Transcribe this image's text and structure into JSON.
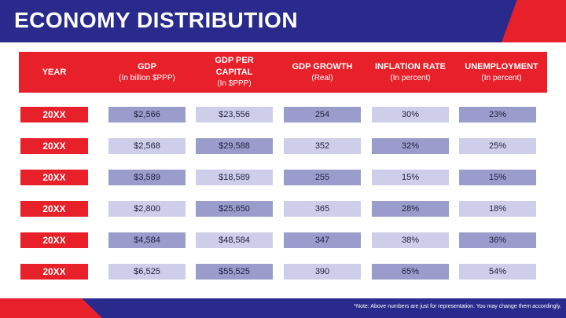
{
  "title": "ECONOMY DISTRIBUTION",
  "columns": [
    {
      "label": "YEAR",
      "sub": ""
    },
    {
      "label": "GDP",
      "sub": "(In billion $PPP)"
    },
    {
      "label": "GDP PER CAPITAL",
      "sub": "(In $PPP)"
    },
    {
      "label": "GDP GROWTH",
      "sub": "(Real)"
    },
    {
      "label": "INFLATION RATE",
      "sub": "(In percent)"
    },
    {
      "label": "UNEMPLOYMENT",
      "sub": "(In percent)"
    }
  ],
  "rows": [
    {
      "year": "20XX",
      "gdp": "$2,566",
      "gdp_per_capita": "$23,556",
      "gdp_growth": "254",
      "inflation": "30%",
      "unemployment": "23%"
    },
    {
      "year": "20XX",
      "gdp": "$2,568",
      "gdp_per_capita": "$29,588",
      "gdp_growth": "352",
      "inflation": "32%",
      "unemployment": "25%"
    },
    {
      "year": "20XX",
      "gdp": "$3,589",
      "gdp_per_capita": "$18,589",
      "gdp_growth": "255",
      "inflation": "15%",
      "unemployment": "15%"
    },
    {
      "year": "20XX",
      "gdp": "$2,800",
      "gdp_per_capita": "$25,650",
      "gdp_growth": "365",
      "inflation": "28%",
      "unemployment": "18%"
    },
    {
      "year": "20XX",
      "gdp": "$4,584",
      "gdp_per_capita": "$48,584",
      "gdp_growth": "347",
      "inflation": "38%",
      "unemployment": "36%"
    },
    {
      "year": "20XX",
      "gdp": "$6,525",
      "gdp_per_capita": "$55,525",
      "gdp_growth": "390",
      "inflation": "65%",
      "unemployment": "54%"
    }
  ],
  "note": "*Note: Above numbers are just for representation. You may change them accordingly.",
  "colors": {
    "blue": "#2a2a8c",
    "red": "#e8202a",
    "cell_dark": "#9a9ccb",
    "cell_light": "#ceceea"
  }
}
